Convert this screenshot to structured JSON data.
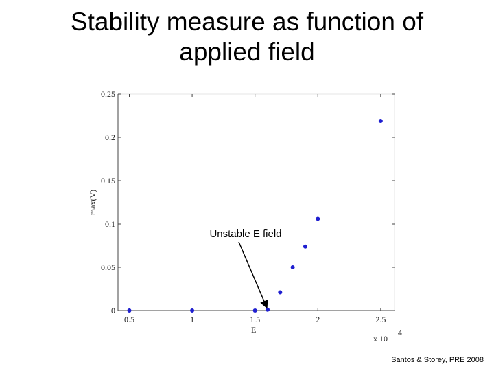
{
  "chart_data": {
    "type": "scatter",
    "title": "Stability measure as function of applied field",
    "x_label": "E",
    "y_label": "max(V)",
    "x_multiplier": "x 10",
    "x_multiplier_exponent": "4",
    "annotation": "Unstable E field",
    "source": "Santos & Storey, PRE 2008",
    "color": "#1f1fd0",
    "x": [
      0.5,
      1,
      1.5,
      1.6,
      1.7,
      1.8,
      1.9,
      2.0,
      2.5
    ],
    "values": [
      0,
      0,
      0,
      0.001,
      0.021,
      0.05,
      0.074,
      0.106,
      0.219
    ],
    "xlim": [
      0.41,
      2.61
    ],
    "ylim": [
      0,
      0.25
    ],
    "xticks": [
      0.5,
      1,
      1.5,
      2,
      2.5
    ],
    "yticks": [
      0,
      0.05,
      0.1,
      0.15,
      0.2,
      0.25
    ],
    "grid": false
  }
}
